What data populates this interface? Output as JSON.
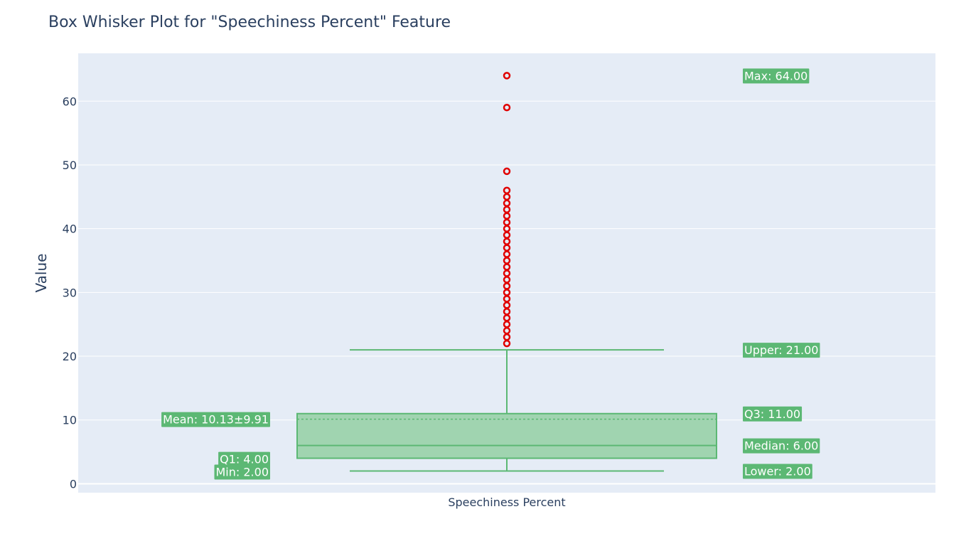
{
  "chart_data": {
    "type": "box",
    "title": "Box Whisker Plot for \"Speechiness Percent\" Feature",
    "xlabel": "",
    "ylabel": "Value",
    "categories": [
      "Speechiness Percent"
    ],
    "ylim": [
      -1.4,
      67.5
    ],
    "yticks": [
      0,
      10,
      20,
      30,
      40,
      50,
      60
    ],
    "grid": true,
    "legend": "none",
    "box": {
      "min": 2,
      "lower_fence": 2,
      "q1": 4,
      "median": 6,
      "q3": 11,
      "upper_fence": 21,
      "max": 64,
      "mean": 10.13,
      "std": 9.91
    },
    "outliers": [
      22,
      23,
      24,
      25,
      26,
      27,
      28,
      29,
      30,
      31,
      32,
      33,
      34,
      35,
      36,
      37,
      38,
      39,
      40,
      41,
      42,
      43,
      44,
      45,
      46,
      49,
      59,
      64
    ],
    "annotations": {
      "mean": "Mean: 10.13±9.91",
      "q1": "Q1: 4.00",
      "min": "Min: 2.00",
      "max": "Max: 64.00",
      "upper": "Upper: 21.00",
      "q3": "Q3: 11.00",
      "median": "Median: 6.00",
      "lower": "Lower: 2.00"
    },
    "colors": {
      "plot_bg": "#e5ecf6",
      "grid": "#ffffff",
      "box_line": "#5cb874",
      "box_fill": "#a0d4b0",
      "outlier": "#e00000",
      "annotation_bg": "#5cb874",
      "text": "#2a3f5f"
    }
  }
}
